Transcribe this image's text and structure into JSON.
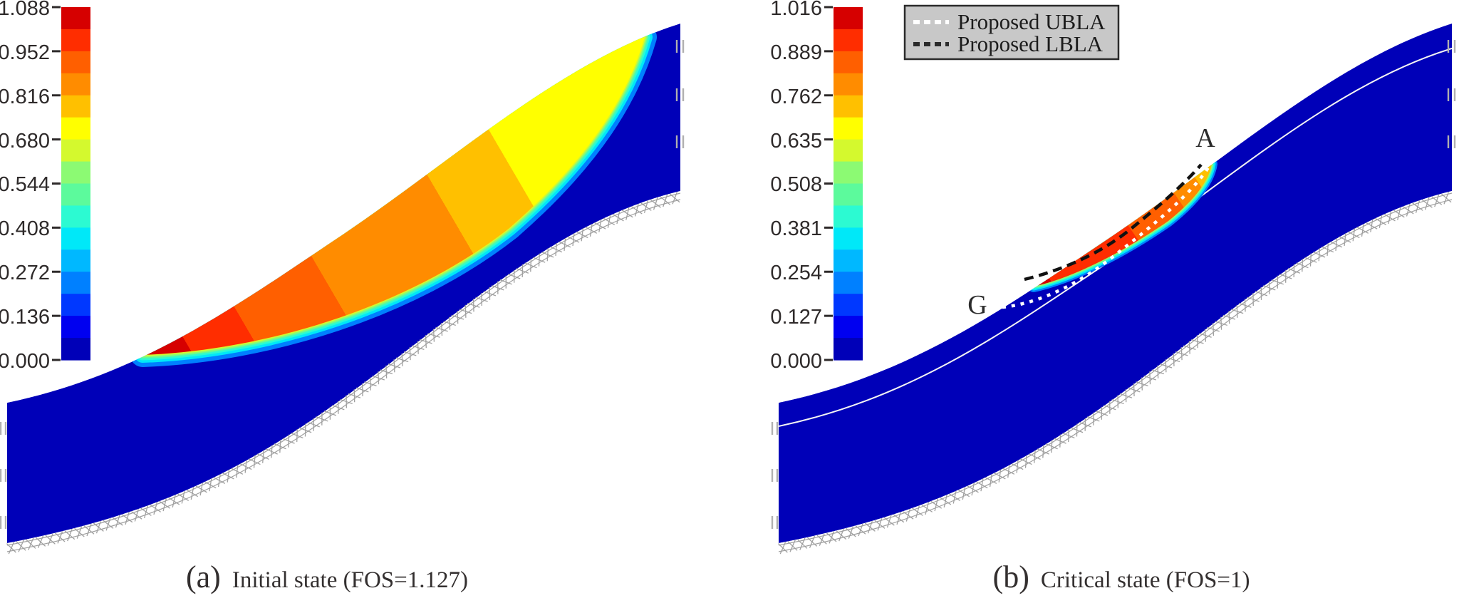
{
  "figure": {
    "background": "#ffffff",
    "body_fill_color": "#0000b8",
    "boundary_hatch_color": "#a0a0a0"
  },
  "chart_data": [
    {
      "type": "heatmap",
      "panel": "a",
      "caption_prefix": "(a)",
      "caption": "Initial state (FOS=1.127)",
      "fos": 1.127,
      "colorbar_range": [
        0.0,
        1.088
      ],
      "colorbar_ticks": [
        "1.088",
        "0.952",
        "0.816",
        "0.680",
        "0.544",
        "0.408",
        "0.272",
        "0.136",
        "0.000"
      ],
      "palette_low_to_high": [
        "#0000b8",
        "#0000f0",
        "#0038ff",
        "#0080ff",
        "#00b8ff",
        "#00e8f8",
        "#2cfad2",
        "#5cfa9c",
        "#8cfa73",
        "#d4f92e",
        "#ffff00",
        "#ffc000",
        "#ff8c00",
        "#ff5f00",
        "#ff2d00",
        "#d60000"
      ],
      "description": "Contour map of S-shaped slope at initial state: large lens-shaped zone in upper slope, yellow near crest grading through orange to dark red maximum at its lower-left tip, rainbow fringe to blue body; bottom boundary hatched, side edges with roller ticks."
    },
    {
      "type": "heatmap",
      "panel": "b",
      "caption_prefix": "(b)",
      "caption": "Critical state (FOS=1)",
      "fos": 1,
      "colorbar_range": [
        0.0,
        1.016
      ],
      "colorbar_ticks": [
        "1.016",
        "0.889",
        "0.762",
        "0.635",
        "0.508",
        "0.381",
        "0.254",
        "0.127",
        "0.000"
      ],
      "palette_low_to_high": [
        "#0000b8",
        "#0000f0",
        "#0038ff",
        "#0080ff",
        "#00b8ff",
        "#00e8f8",
        "#2cfad2",
        "#5cfa9c",
        "#8cfa73",
        "#d4f92e",
        "#ffff00",
        "#ffc000",
        "#ff8c00",
        "#ff5f00",
        "#ff2d00",
        "#d60000"
      ],
      "legend": [
        {
          "label": "Proposed UBLA",
          "line": "white-dashed"
        },
        {
          "label": "Proposed LBLA",
          "line": "black-dashed"
        }
      ],
      "annotations": [
        {
          "text": "A",
          "meaning": "upper exit point of slip surface"
        },
        {
          "text": "G",
          "meaning": "lower entry point of slip surface"
        }
      ],
      "description": "Contour map of same slope at critical state: blue body with thin red-orange shear band along upper slope face between G and A, white dotted UBLA and black dashed LBLA slip surfaces, thin white line parallel to slope face."
    }
  ]
}
